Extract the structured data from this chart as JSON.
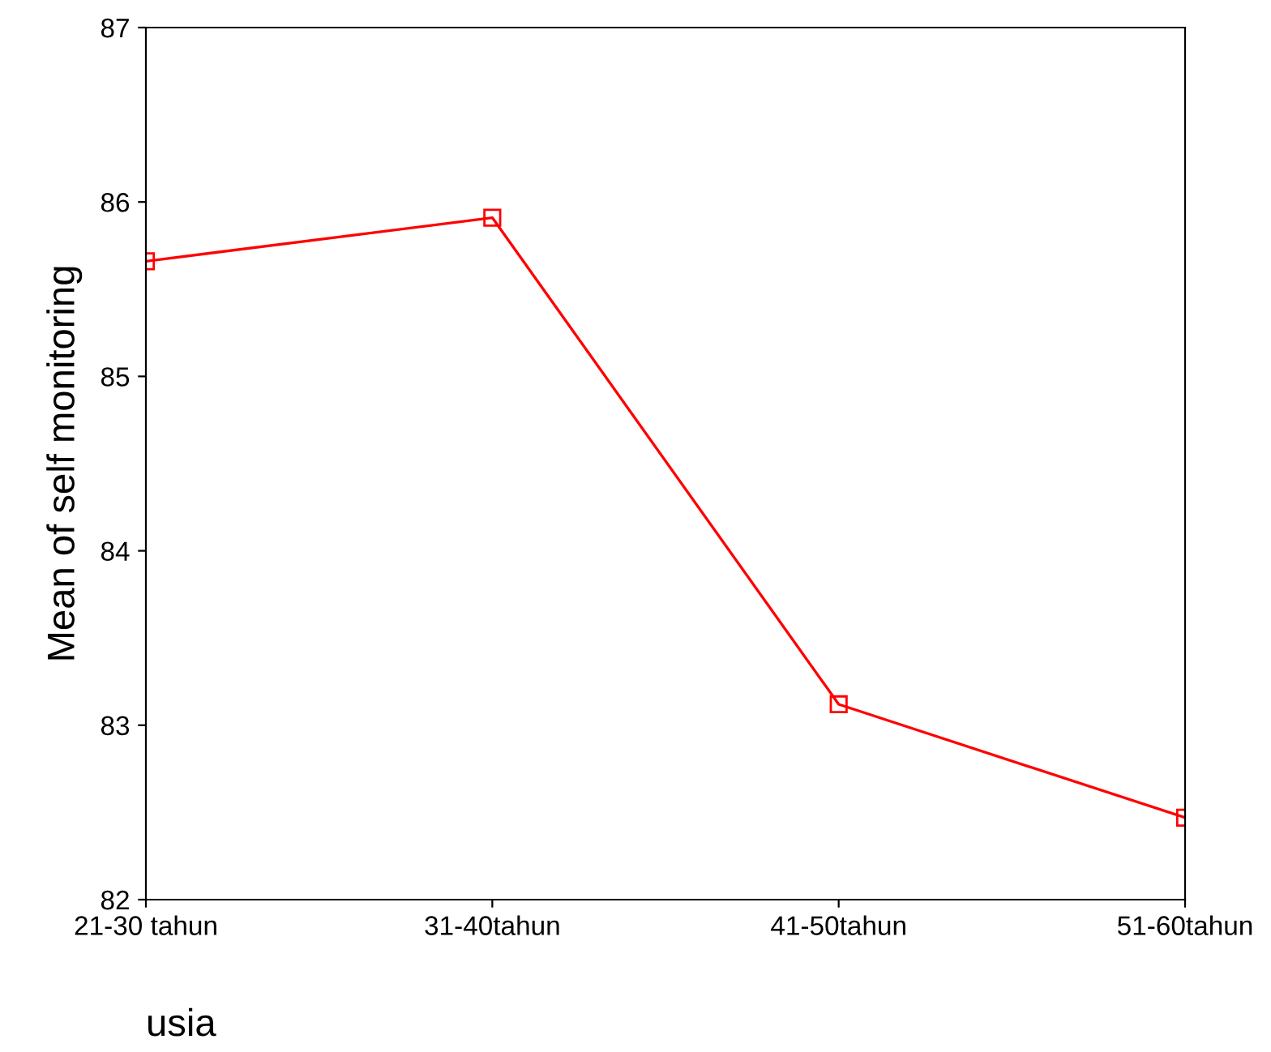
{
  "chart_data": {
    "type": "line",
    "xlabel": "usia",
    "ylabel": "Mean of self monitoring",
    "categories": [
      "21-30 tahun",
      "31-40tahun",
      "41-50tahun",
      "51-60tahun"
    ],
    "series": [
      {
        "color": "#ff0000",
        "values": [
          85.66,
          85.91,
          83.12,
          82.47
        ]
      }
    ],
    "ylim": [
      82,
      87
    ],
    "yticks": [
      82,
      83,
      84,
      85,
      86,
      87
    ],
    "grid": false,
    "legend": false,
    "marker": "square",
    "line_style": "solid"
  }
}
